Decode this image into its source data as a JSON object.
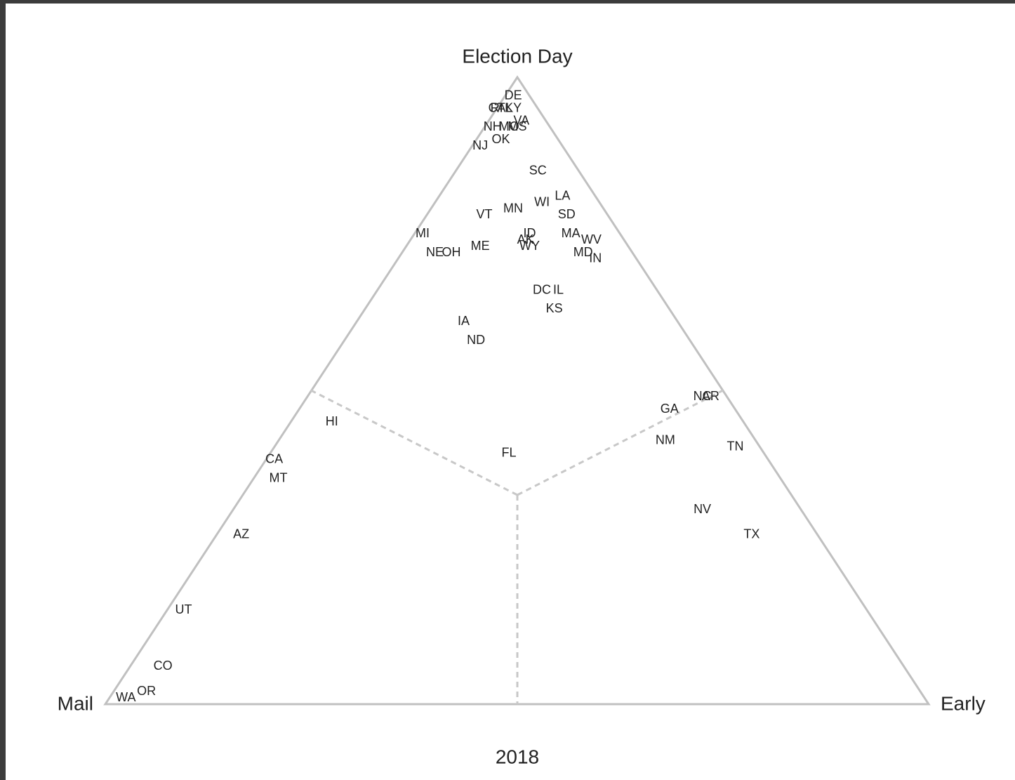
{
  "chart_data": {
    "type": "ternary",
    "title": "2018",
    "axes": {
      "top": "Election Day",
      "left": "Mail",
      "right": "Early"
    },
    "points": [
      {
        "label": "DE",
        "election_day": 97,
        "early": 1,
        "mail": 2
      },
      {
        "label": "RI",
        "election_day": 95,
        "early": 0,
        "mail": 5
      },
      {
        "label": "CT",
        "election_day": 95,
        "early": 0,
        "mail": 5
      },
      {
        "label": "AL",
        "election_day": 95,
        "early": 1,
        "mail": 4
      },
      {
        "label": "KY",
        "election_day": 95,
        "early": 2,
        "mail": 3
      },
      {
        "label": "NH",
        "election_day": 92,
        "early": 1,
        "mail": 7
      },
      {
        "label": "MO",
        "election_day": 92,
        "early": 3,
        "mail": 5
      },
      {
        "label": "VA",
        "election_day": 93,
        "early": 4,
        "mail": 3
      },
      {
        "label": "MS",
        "election_day": 92,
        "early": 4,
        "mail": 4
      },
      {
        "label": "OK",
        "election_day": 90,
        "early": 3,
        "mail": 7
      },
      {
        "label": "NJ",
        "election_day": 89,
        "early": 1,
        "mail": 10
      },
      {
        "label": "SC",
        "election_day": 85,
        "early": 10,
        "mail": 5
      },
      {
        "label": "WI",
        "election_day": 80,
        "early": 13,
        "mail": 7
      },
      {
        "label": "LA",
        "election_day": 81,
        "early": 15,
        "mail": 4
      },
      {
        "label": "MN",
        "election_day": 79,
        "early": 10,
        "mail": 11
      },
      {
        "label": "VT",
        "election_day": 78,
        "early": 7,
        "mail": 15
      },
      {
        "label": "SD",
        "election_day": 78,
        "early": 17,
        "mail": 5
      },
      {
        "label": "MI",
        "election_day": 75,
        "early": 1,
        "mail": 24
      },
      {
        "label": "MA",
        "election_day": 75,
        "early": 19,
        "mail": 6
      },
      {
        "label": "WV",
        "election_day": 74,
        "early": 22,
        "mail": 4
      },
      {
        "label": "ID",
        "election_day": 75,
        "early": 14,
        "mail": 11
      },
      {
        "label": "AK",
        "election_day": 74,
        "early": 14,
        "mail": 12
      },
      {
        "label": "WY",
        "election_day": 73,
        "early": 15,
        "mail": 12
      },
      {
        "label": "NE",
        "election_day": 72,
        "early": 4,
        "mail": 24
      },
      {
        "label": "OH",
        "election_day": 72,
        "early": 6,
        "mail": 22
      },
      {
        "label": "ME",
        "election_day": 73,
        "early": 9,
        "mail": 18
      },
      {
        "label": "MD",
        "election_day": 72,
        "early": 22,
        "mail": 6
      },
      {
        "label": "IN",
        "election_day": 71,
        "early": 24,
        "mail": 5
      },
      {
        "label": "DC",
        "election_day": 66,
        "early": 20,
        "mail": 14
      },
      {
        "label": "IL",
        "election_day": 66,
        "early": 22,
        "mail": 12
      },
      {
        "label": "KS",
        "election_day": 63,
        "early": 23,
        "mail": 14
      },
      {
        "label": "IA",
        "election_day": 61,
        "early": 13,
        "mail": 26
      },
      {
        "label": "ND",
        "election_day": 58,
        "early": 16,
        "mail": 26
      },
      {
        "label": "AR",
        "election_day": 49,
        "early": 49,
        "mail": 2
      },
      {
        "label": "NC",
        "election_day": 49,
        "early": 48,
        "mail": 3
      },
      {
        "label": "GA",
        "election_day": 47,
        "early": 45,
        "mail": 8
      },
      {
        "label": "HI",
        "election_day": 45,
        "early": 5,
        "mail": 50
      },
      {
        "label": "NM",
        "election_day": 42,
        "early": 47,
        "mail": 11
      },
      {
        "label": "TN",
        "election_day": 41,
        "early": 56,
        "mail": 3
      },
      {
        "label": "FL",
        "election_day": 40,
        "early": 29,
        "mail": 31
      },
      {
        "label": "CA",
        "election_day": 39,
        "early": 1,
        "mail": 60
      },
      {
        "label": "MT",
        "election_day": 36,
        "early": 3,
        "mail": 61
      },
      {
        "label": "NV",
        "election_day": 31,
        "early": 57,
        "mail": 12
      },
      {
        "label": "AZ",
        "election_day": 27,
        "early": 3,
        "mail": 70
      },
      {
        "label": "TX",
        "election_day": 27,
        "early": 65,
        "mail": 8
      },
      {
        "label": "UT",
        "election_day": 15,
        "early": 2,
        "mail": 83
      },
      {
        "label": "CO",
        "election_day": 6,
        "early": 4,
        "mail": 90
      },
      {
        "label": "WA",
        "election_day": 1,
        "early": 2,
        "mail": 97
      },
      {
        "label": "OR",
        "election_day": 2,
        "early": 4,
        "mail": 94
      }
    ]
  }
}
